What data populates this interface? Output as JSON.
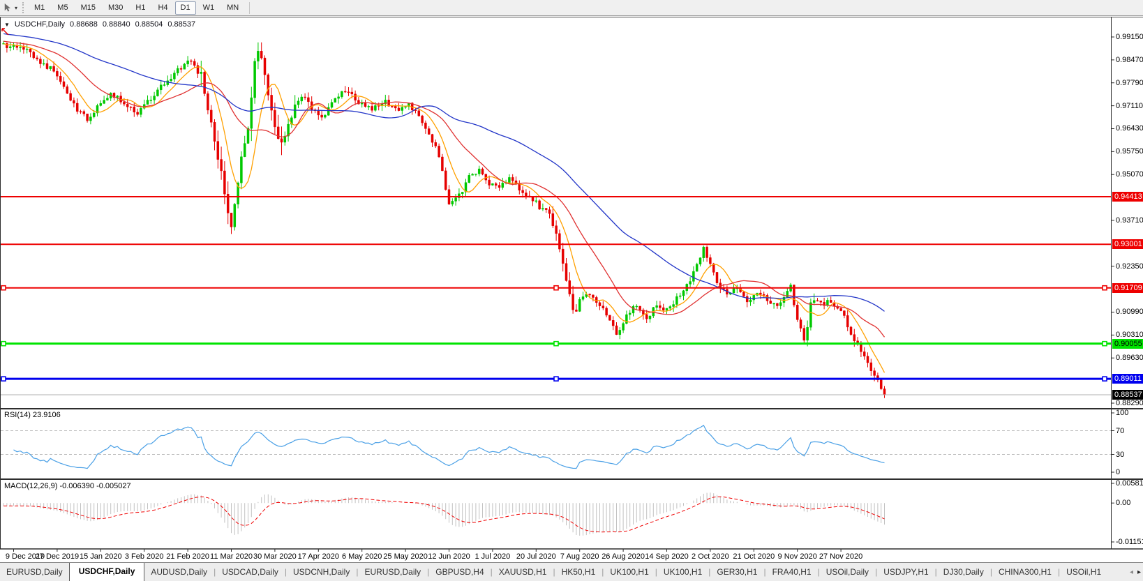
{
  "toolbar": {
    "cursor_tool_icon": "cursor-arrow",
    "dropdown_icon": "chevron-down",
    "timeframes": [
      {
        "label": "M1",
        "active": false
      },
      {
        "label": "M5",
        "active": false
      },
      {
        "label": "M15",
        "active": false
      },
      {
        "label": "M30",
        "active": false
      },
      {
        "label": "H1",
        "active": false
      },
      {
        "label": "H4",
        "active": false
      },
      {
        "label": "D1",
        "active": true
      },
      {
        "label": "W1",
        "active": false
      },
      {
        "label": "MN",
        "active": false
      }
    ]
  },
  "chart": {
    "title": {
      "menu_triangle": "▼",
      "symbol": "USDCHF,Daily",
      "open": "0.88688",
      "high": "0.88840",
      "low": "0.88504",
      "close": "0.88537"
    },
    "price_axis": {
      "labels": [
        "0.99150",
        "0.98470",
        "0.97790",
        "0.97110",
        "0.96430",
        "0.95750",
        "0.95070",
        "0.93710",
        "0.92350",
        "0.90990",
        "0.90310",
        "0.89630",
        "0.88290"
      ]
    },
    "level_lines": [
      {
        "price": "0.94413",
        "color": "#ee0000",
        "label_bg": "#ee0000",
        "label_fg": "#ffffff",
        "width": 2,
        "handles": false
      },
      {
        "price": "0.93001",
        "color": "#ee0000",
        "label_bg": "#ee0000",
        "label_fg": "#ffffff",
        "width": 2,
        "handles": false
      },
      {
        "price": "0.91709",
        "color": "#ee0000",
        "label_bg": "#ee0000",
        "label_fg": "#ffffff",
        "width": 2,
        "handles": true
      },
      {
        "price": "0.90055",
        "color": "#00e400",
        "label_bg": "#00e400",
        "label_fg": "#000000",
        "width": 3,
        "handles": true
      },
      {
        "price": "0.89011",
        "color": "#0000ee",
        "label_bg": "#0000ee",
        "label_fg": "#ffffff",
        "width": 3,
        "handles": true
      }
    ],
    "current_price": {
      "value": "0.88537",
      "label_bg": "#000000",
      "label_fg": "#ffffff",
      "line_color": "#b0b0b0"
    },
    "date_axis": {
      "labels": [
        "9 Dec 2019",
        "27 Dec 2019",
        "15 Jan 2020",
        "3 Feb 2020",
        "21 Feb 2020",
        "11 Mar 2020",
        "30 Mar 2020",
        "17 Apr 2020",
        "6 May 2020",
        "25 May 2020",
        "12 Jun 2020",
        "1 Jul 2020",
        "20 Jul 2020",
        "7 Aug 2020",
        "26 Aug 2020",
        "14 Sep 2020",
        "2 Oct 2020",
        "21 Oct 2020",
        "9 Nov 2020",
        "27 Nov 2020"
      ]
    }
  },
  "rsi": {
    "label": "RSI(14) 23.9106",
    "value": "23.9106",
    "period": 14,
    "scale": [
      "100",
      "70",
      "30",
      "0"
    ],
    "dashed_levels": [
      70,
      30
    ],
    "line_color": "#4aa0e6"
  },
  "macd": {
    "label": "MACD(12,26,9) -0.006390 -0.005027",
    "macd_value": "-0.006390",
    "signal_value": "-0.005027",
    "params": [
      12,
      26,
      9
    ],
    "scale": [
      "0.005818",
      "0.00",
      "-0.011514"
    ],
    "histogram_color": "#c2c2c2",
    "signal_color": "#f00000"
  },
  "tabs": {
    "items": [
      {
        "label": "EURUSD,Daily",
        "active": false
      },
      {
        "label": "USDCHF,Daily",
        "active": true
      },
      {
        "label": "AUDUSD,Daily",
        "active": false
      },
      {
        "label": "USDCAD,Daily",
        "active": false
      },
      {
        "label": "USDCNH,Daily",
        "active": false
      },
      {
        "label": "EURUSD,Daily",
        "active": false
      },
      {
        "label": "GBPUSD,H4",
        "active": false
      },
      {
        "label": "XAUUSD,H1",
        "active": false
      },
      {
        "label": "HK50,H1",
        "active": false
      },
      {
        "label": "UK100,H1",
        "active": false
      },
      {
        "label": "UK100,H1",
        "active": false
      },
      {
        "label": "GER30,H1",
        "active": false
      },
      {
        "label": "FRA40,H1",
        "active": false
      },
      {
        "label": "USOil,Daily",
        "active": false
      },
      {
        "label": "USDJPY,H1",
        "active": false
      },
      {
        "label": "DJ30,Daily",
        "active": false
      },
      {
        "label": "CHINA300,H1",
        "active": false
      },
      {
        "label": "USOil,H1",
        "active": false
      }
    ],
    "scroll_left_icon": "◂",
    "scroll_right_icon": "▸"
  },
  "chart_data": {
    "type": "candlestick",
    "symbol": "USDCHF",
    "timeframe": "Daily",
    "ohlc_current": {
      "open": 0.88688,
      "high": 0.8884,
      "low": 0.88504,
      "close": 0.88537
    },
    "price_axis_range": [
      0.8829,
      0.9915
    ],
    "grid_step": 0.0068,
    "horizontal_levels": [
      0.94413,
      0.93001,
      0.91709,
      0.90055,
      0.89011
    ],
    "candle_colors": {
      "bull": "#00c800",
      "bear": "#e60000"
    },
    "moving_averages": [
      {
        "period": 8,
        "color": "#ffa000"
      },
      {
        "period": 21,
        "color": "#e03232"
      },
      {
        "period": 55,
        "color": "#2336c8"
      }
    ],
    "rsi": {
      "period": 14,
      "last": 23.9106,
      "range": [
        0,
        100
      ],
      "levels": [
        30,
        70
      ]
    },
    "macd": {
      "fast": 12,
      "slow": 26,
      "signal": 9,
      "last_macd": -0.00639,
      "last_signal": -0.005027,
      "axis": [
        0.005818,
        0.0,
        -0.011514
      ]
    },
    "price_anchors": [
      [
        -60,
        0.996
      ],
      [
        -30,
        0.9928
      ],
      [
        -10,
        0.9898
      ],
      [
        0,
        0.9885
      ],
      [
        4,
        0.9872
      ],
      [
        8,
        0.9842
      ],
      [
        12,
        0.9815
      ],
      [
        16,
        0.9748
      ],
      [
        19,
        0.9702
      ],
      [
        22,
        0.9672
      ],
      [
        25,
        0.971
      ],
      [
        29,
        0.9742
      ],
      [
        33,
        0.9722
      ],
      [
        37,
        0.969
      ],
      [
        41,
        0.9735
      ],
      [
        45,
        0.9778
      ],
      [
        49,
        0.9818
      ],
      [
        53,
        0.9843
      ],
      [
        56,
        0.9792
      ],
      [
        58,
        0.9705
      ],
      [
        60,
        0.9612
      ],
      [
        62,
        0.951
      ],
      [
        64,
        0.94
      ],
      [
        65,
        0.9335
      ],
      [
        66,
        0.9425
      ],
      [
        68,
        0.9558
      ],
      [
        70,
        0.9645
      ],
      [
        72,
        0.9828
      ],
      [
        73,
        0.9882
      ],
      [
        74,
        0.9858
      ],
      [
        76,
        0.9742
      ],
      [
        78,
        0.9652
      ],
      [
        80,
        0.9592
      ],
      [
        83,
        0.9678
      ],
      [
        86,
        0.9745
      ],
      [
        89,
        0.9702
      ],
      [
        92,
        0.9672
      ],
      [
        95,
        0.9728
      ],
      [
        99,
        0.976
      ],
      [
        103,
        0.9722
      ],
      [
        107,
        0.97
      ],
      [
        111,
        0.9722
      ],
      [
        115,
        0.9702
      ],
      [
        118,
        0.9718
      ],
      [
        121,
        0.9675
      ],
      [
        124,
        0.9632
      ],
      [
        127,
        0.956
      ],
      [
        130,
        0.9422
      ],
      [
        133,
        0.9445
      ],
      [
        136,
        0.9498
      ],
      [
        139,
        0.9518
      ],
      [
        142,
        0.948
      ],
      [
        145,
        0.9465
      ],
      [
        148,
        0.9494
      ],
      [
        151,
        0.946
      ],
      [
        154,
        0.944
      ],
      [
        157,
        0.9412
      ],
      [
        160,
        0.9388
      ],
      [
        163,
        0.929
      ],
      [
        165,
        0.919
      ],
      [
        167,
        0.9096
      ],
      [
        169,
        0.9128
      ],
      [
        172,
        0.9154
      ],
      [
        175,
        0.912
      ],
      [
        178,
        0.9076
      ],
      [
        180,
        0.903
      ],
      [
        183,
        0.9088
      ],
      [
        186,
        0.9124
      ],
      [
        189,
        0.9082
      ],
      [
        192,
        0.9118
      ],
      [
        195,
        0.9104
      ],
      [
        198,
        0.914
      ],
      [
        201,
        0.9178
      ],
      [
        204,
        0.9238
      ],
      [
        206,
        0.9288
      ],
      [
        208,
        0.9248
      ],
      [
        210,
        0.918
      ],
      [
        213,
        0.915
      ],
      [
        216,
        0.9168
      ],
      [
        219,
        0.9136
      ],
      [
        222,
        0.9154
      ],
      [
        225,
        0.9136
      ],
      [
        228,
        0.912
      ],
      [
        230,
        0.9144
      ],
      [
        232,
        0.9176
      ],
      [
        234,
        0.9082
      ],
      [
        236,
        0.9012
      ],
      [
        238,
        0.9122
      ],
      [
        240,
        0.9138
      ],
      [
        242,
        0.912
      ],
      [
        244,
        0.9134
      ],
      [
        246,
        0.911
      ],
      [
        248,
        0.9082
      ],
      [
        250,
        0.9042
      ],
      [
        252,
        0.8996
      ],
      [
        254,
        0.896
      ],
      [
        256,
        0.8926
      ],
      [
        258,
        0.8898
      ],
      [
        259,
        0.8872
      ],
      [
        260,
        0.8854
      ]
    ]
  }
}
